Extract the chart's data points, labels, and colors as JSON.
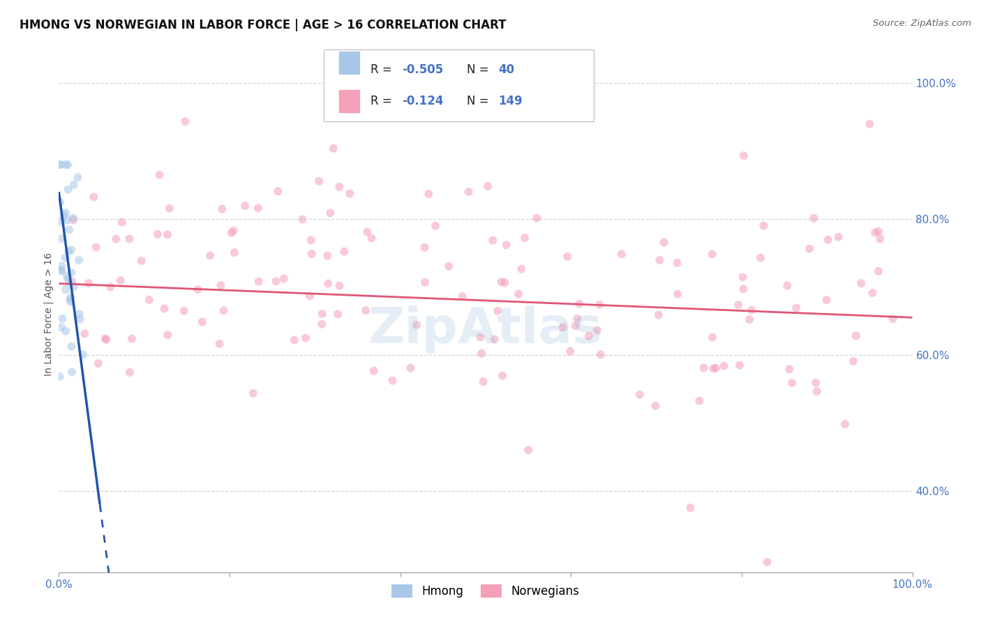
{
  "title": "HMONG VS NORWEGIAN IN LABOR FORCE | AGE > 16 CORRELATION CHART",
  "source": "Source: ZipAtlas.com",
  "ylabel": "In Labor Force | Age > 16",
  "xlim": [
    0.0,
    1.0
  ],
  "ylim": [
    0.28,
    1.04
  ],
  "y_ticks": [
    0.4,
    0.6,
    0.8,
    1.0
  ],
  "y_ticklabels": [
    "40.0%",
    "60.0%",
    "80.0%",
    "100.0%"
  ],
  "hmong_R": -0.505,
  "hmong_N": 40,
  "norwegian_R": -0.124,
  "norwegian_N": 149,
  "hmong_color": "#a8c8e8",
  "norwegian_color": "#f4a0b8",
  "hmong_line_color": "#2255aa",
  "norwegian_line_color": "#e05575",
  "background_color": "#ffffff",
  "grid_color": "#cccccc",
  "title_fontsize": 12,
  "axis_label_fontsize": 10,
  "tick_fontsize": 11,
  "legend_fontsize": 12,
  "marker_size": 75,
  "marker_alpha": 0.55,
  "watermark_text": "ZipAtlas",
  "watermark_color": "#9ab8e0",
  "watermark_alpha": 0.25
}
